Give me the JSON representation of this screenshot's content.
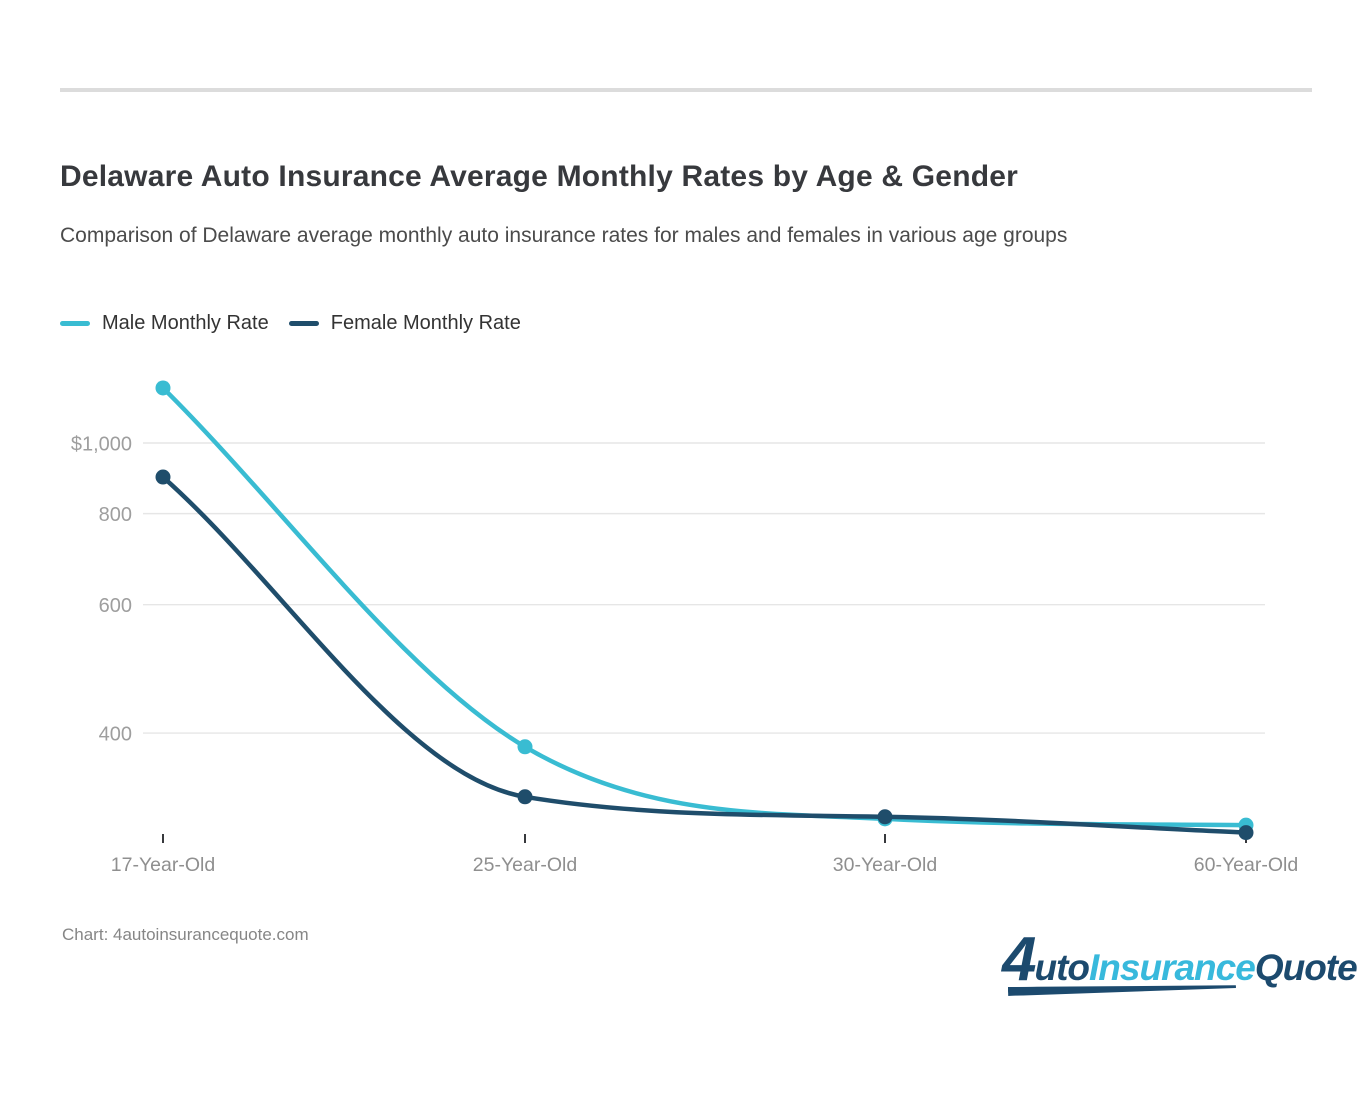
{
  "page": {
    "title": "Delaware Auto Insurance Average Monthly Rates by Age & Gender",
    "subtitle": "Comparison of Delaware average monthly auto insurance rates for males and females in various age groups",
    "footer_note": "Chart: 4autoinsurancequote.com"
  },
  "logo": {
    "prefix": "4",
    "part1": "uto",
    "part2": "Insurance",
    "part3": "Quote",
    "navy": "#1c4a6e",
    "cyan": "#38b9dc"
  },
  "chart_data": {
    "type": "line",
    "categories": [
      "17-Year-Old",
      "25-Year-Old",
      "30-Year-Old",
      "60-Year-Old"
    ],
    "series": [
      {
        "name": "Male Monthly Rate",
        "color": "#39bcd2",
        "values": [
          1190,
          383,
          305,
          299
        ]
      },
      {
        "name": "Female Monthly Rate",
        "color": "#1f4d6b",
        "values": [
          898,
          327,
          307,
          292
        ]
      }
    ],
    "title": "Delaware Auto Insurance Average Monthly Rates by Age & Gender",
    "xlabel": "",
    "ylabel": "",
    "y_axis": {
      "scale": "log",
      "tick_prefix_first": "$",
      "ticks": [
        {
          "label": "$1,000",
          "value": 1000
        },
        {
          "label": "800",
          "value": 800
        },
        {
          "label": "600",
          "value": 600
        },
        {
          "label": "400",
          "value": 400
        }
      ]
    },
    "ylim": [
      290,
      1300
    ],
    "grid": "horizontal",
    "legend_position": "top-left",
    "colors": {
      "grid_line": "#e6e6e6",
      "axis_tick": "#37393d",
      "x_label": "#8f8f8f",
      "y_label": "#9e9e9e"
    }
  }
}
